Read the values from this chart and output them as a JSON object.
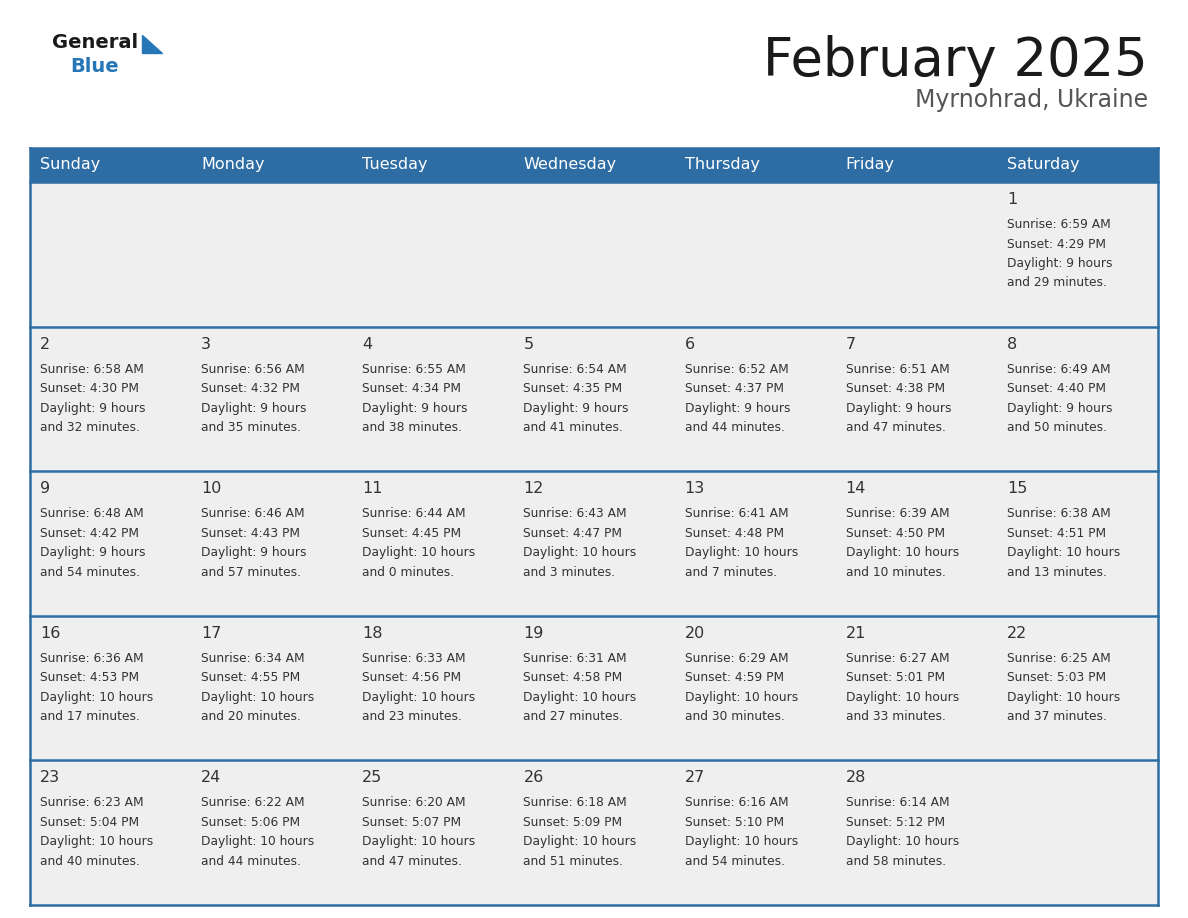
{
  "title": "February 2025",
  "subtitle": "Myrnohrad, Ukraine",
  "header_bg": "#2E6DA4",
  "header_text": "#FFFFFF",
  "cell_bg": "#EFEFEF",
  "day_names": [
    "Sunday",
    "Monday",
    "Tuesday",
    "Wednesday",
    "Thursday",
    "Friday",
    "Saturday"
  ],
  "grid_line_color": "#2E6DA4",
  "text_color": "#333333",
  "title_color": "#1a1a1a",
  "subtitle_color": "#555555",
  "logo_general_color": "#1a1a1a",
  "logo_blue_color": "#2776B8",
  "logo_triangle_color": "#2776B8",
  "days_data": [
    {
      "day": 1,
      "col": 6,
      "row": 0,
      "sunrise": "6:59 AM",
      "sunset": "4:29 PM",
      "daylight_h": "9 hours",
      "daylight_m": "29 minutes."
    },
    {
      "day": 2,
      "col": 0,
      "row": 1,
      "sunrise": "6:58 AM",
      "sunset": "4:30 PM",
      "daylight_h": "9 hours",
      "daylight_m": "32 minutes."
    },
    {
      "day": 3,
      "col": 1,
      "row": 1,
      "sunrise": "6:56 AM",
      "sunset": "4:32 PM",
      "daylight_h": "9 hours",
      "daylight_m": "35 minutes."
    },
    {
      "day": 4,
      "col": 2,
      "row": 1,
      "sunrise": "6:55 AM",
      "sunset": "4:34 PM",
      "daylight_h": "9 hours",
      "daylight_m": "38 minutes."
    },
    {
      "day": 5,
      "col": 3,
      "row": 1,
      "sunrise": "6:54 AM",
      "sunset": "4:35 PM",
      "daylight_h": "9 hours",
      "daylight_m": "41 minutes."
    },
    {
      "day": 6,
      "col": 4,
      "row": 1,
      "sunrise": "6:52 AM",
      "sunset": "4:37 PM",
      "daylight_h": "9 hours",
      "daylight_m": "44 minutes."
    },
    {
      "day": 7,
      "col": 5,
      "row": 1,
      "sunrise": "6:51 AM",
      "sunset": "4:38 PM",
      "daylight_h": "9 hours",
      "daylight_m": "47 minutes."
    },
    {
      "day": 8,
      "col": 6,
      "row": 1,
      "sunrise": "6:49 AM",
      "sunset": "4:40 PM",
      "daylight_h": "9 hours",
      "daylight_m": "50 minutes."
    },
    {
      "day": 9,
      "col": 0,
      "row": 2,
      "sunrise": "6:48 AM",
      "sunset": "4:42 PM",
      "daylight_h": "9 hours",
      "daylight_m": "54 minutes."
    },
    {
      "day": 10,
      "col": 1,
      "row": 2,
      "sunrise": "6:46 AM",
      "sunset": "4:43 PM",
      "daylight_h": "9 hours",
      "daylight_m": "57 minutes."
    },
    {
      "day": 11,
      "col": 2,
      "row": 2,
      "sunrise": "6:44 AM",
      "sunset": "4:45 PM",
      "daylight_h": "10 hours",
      "daylight_m": "0 minutes."
    },
    {
      "day": 12,
      "col": 3,
      "row": 2,
      "sunrise": "6:43 AM",
      "sunset": "4:47 PM",
      "daylight_h": "10 hours",
      "daylight_m": "3 minutes."
    },
    {
      "day": 13,
      "col": 4,
      "row": 2,
      "sunrise": "6:41 AM",
      "sunset": "4:48 PM",
      "daylight_h": "10 hours",
      "daylight_m": "7 minutes."
    },
    {
      "day": 14,
      "col": 5,
      "row": 2,
      "sunrise": "6:39 AM",
      "sunset": "4:50 PM",
      "daylight_h": "10 hours",
      "daylight_m": "10 minutes."
    },
    {
      "day": 15,
      "col": 6,
      "row": 2,
      "sunrise": "6:38 AM",
      "sunset": "4:51 PM",
      "daylight_h": "10 hours",
      "daylight_m": "13 minutes."
    },
    {
      "day": 16,
      "col": 0,
      "row": 3,
      "sunrise": "6:36 AM",
      "sunset": "4:53 PM",
      "daylight_h": "10 hours",
      "daylight_m": "17 minutes."
    },
    {
      "day": 17,
      "col": 1,
      "row": 3,
      "sunrise": "6:34 AM",
      "sunset": "4:55 PM",
      "daylight_h": "10 hours",
      "daylight_m": "20 minutes."
    },
    {
      "day": 18,
      "col": 2,
      "row": 3,
      "sunrise": "6:33 AM",
      "sunset": "4:56 PM",
      "daylight_h": "10 hours",
      "daylight_m": "23 minutes."
    },
    {
      "day": 19,
      "col": 3,
      "row": 3,
      "sunrise": "6:31 AM",
      "sunset": "4:58 PM",
      "daylight_h": "10 hours",
      "daylight_m": "27 minutes."
    },
    {
      "day": 20,
      "col": 4,
      "row": 3,
      "sunrise": "6:29 AM",
      "sunset": "4:59 PM",
      "daylight_h": "10 hours",
      "daylight_m": "30 minutes."
    },
    {
      "day": 21,
      "col": 5,
      "row": 3,
      "sunrise": "6:27 AM",
      "sunset": "5:01 PM",
      "daylight_h": "10 hours",
      "daylight_m": "33 minutes."
    },
    {
      "day": 22,
      "col": 6,
      "row": 3,
      "sunrise": "6:25 AM",
      "sunset": "5:03 PM",
      "daylight_h": "10 hours",
      "daylight_m": "37 minutes."
    },
    {
      "day": 23,
      "col": 0,
      "row": 4,
      "sunrise": "6:23 AM",
      "sunset": "5:04 PM",
      "daylight_h": "10 hours",
      "daylight_m": "40 minutes."
    },
    {
      "day": 24,
      "col": 1,
      "row": 4,
      "sunrise": "6:22 AM",
      "sunset": "5:06 PM",
      "daylight_h": "10 hours",
      "daylight_m": "44 minutes."
    },
    {
      "day": 25,
      "col": 2,
      "row": 4,
      "sunrise": "6:20 AM",
      "sunset": "5:07 PM",
      "daylight_h": "10 hours",
      "daylight_m": "47 minutes."
    },
    {
      "day": 26,
      "col": 3,
      "row": 4,
      "sunrise": "6:18 AM",
      "sunset": "5:09 PM",
      "daylight_h": "10 hours",
      "daylight_m": "51 minutes."
    },
    {
      "day": 27,
      "col": 4,
      "row": 4,
      "sunrise": "6:16 AM",
      "sunset": "5:10 PM",
      "daylight_h": "10 hours",
      "daylight_m": "54 minutes."
    },
    {
      "day": 28,
      "col": 5,
      "row": 4,
      "sunrise": "6:14 AM",
      "sunset": "5:12 PM",
      "daylight_h": "10 hours",
      "daylight_m": "58 minutes."
    }
  ]
}
